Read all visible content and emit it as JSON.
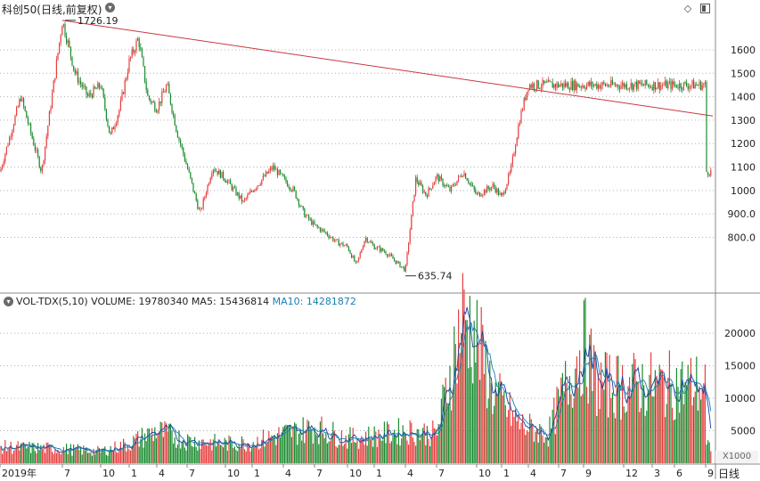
{
  "window": {
    "title": "科创50(日线,前复权)",
    "title_button_icon": "chevron-down-icon",
    "toolbar_icons": [
      "diamond-icon",
      "maximize-icon"
    ]
  },
  "colors": {
    "up": "#e64040",
    "down": "#1c8c30",
    "trendline": "#c8383f",
    "ma5": "#1a3f9e",
    "ma10": "#1a7fb0",
    "grid": "#b0b0b0"
  },
  "volume_header": {
    "button_icon": "chevron-down-icon",
    "text": "VOL-TDX(5,10) VOLUME: 19780340 MA5: 15436814",
    "ma10_text": "MA10: 14281872"
  },
  "volume_unit": "X1000",
  "period": "日线",
  "chart_data": [
    {
      "type": "candlestick",
      "title": "科创50(日线,前复权)",
      "y_ticks": [
        "1600",
        "1500",
        "1400",
        "1300",
        "1200",
        "1100",
        "1000",
        "900.0",
        "800.0"
      ],
      "ylim": [
        560,
        1780
      ],
      "annotations": [
        {
          "text": "1726.19",
          "x": "2019-07",
          "value": 1726.19,
          "kind": "high"
        },
        {
          "text": "635.74",
          "x": "2022-04",
          "value": 635.74,
          "kind": "low"
        }
      ],
      "trendline": [
        {
          "x": "2019-07",
          "value": 1726
        },
        {
          "x": "2024-10",
          "value": 1318
        }
      ],
      "x_labels": [
        "2019年",
        "7",
        "10",
        "1",
        "4",
        "7",
        "10",
        "1",
        "4",
        "7",
        "10",
        "1",
        "4",
        "7",
        "10",
        "1",
        "4",
        "7",
        "9",
        "12",
        "3",
        "6",
        "9"
      ],
      "close_series_approx": [
        [
          "2019-04",
          1080
        ],
        [
          "2019-05",
          1400
        ],
        [
          "2019-06",
          1080
        ],
        [
          "2019-07",
          1726
        ],
        [
          "2019-08",
          1500
        ],
        [
          "2019-09",
          1400
        ],
        [
          "2019-10",
          1450
        ],
        [
          "2019-11",
          1230
        ],
        [
          "2019-12",
          1350
        ],
        [
          "2020-01",
          1550
        ],
        [
          "2020-02",
          1650
        ],
        [
          "2020-03",
          1400
        ],
        [
          "2020-04",
          1350
        ],
        [
          "2020-05",
          1450
        ],
        [
          "2020-06",
          1250
        ],
        [
          "2020-07",
          1100
        ],
        [
          "2020-08",
          900
        ],
        [
          "2020-09",
          1100
        ],
        [
          "2020-10",
          1050
        ],
        [
          "2020-11",
          1000
        ],
        [
          "2020-12",
          950
        ],
        [
          "2021-01",
          1000
        ],
        [
          "2021-02",
          1050
        ],
        [
          "2021-03",
          1100
        ],
        [
          "2021-04",
          1050
        ],
        [
          "2021-05",
          1000
        ],
        [
          "2021-06",
          900
        ],
        [
          "2021-07",
          850
        ],
        [
          "2021-08",
          820
        ],
        [
          "2021-09",
          780
        ],
        [
          "2021-10",
          760
        ],
        [
          "2021-11",
          680
        ],
        [
          "2021-12",
          800
        ],
        [
          "2022-01",
          760
        ],
        [
          "2022-02",
          740
        ],
        [
          "2022-03",
          700
        ],
        [
          "2022-04",
          660
        ],
        [
          "2022-05",
          1050
        ],
        [
          "2022-06",
          980
        ],
        [
          "2022-07",
          1060
        ],
        [
          "2022-08",
          1000
        ],
        [
          "2022-09",
          1080
        ],
        [
          "2022-10",
          980
        ],
        [
          "2022-11",
          1000
        ],
        [
          "2022-12",
          1020
        ],
        [
          "2023-01",
          970
        ],
        [
          "2023-02",
          1080
        ],
        [
          "2023-03",
          1300
        ],
        [
          "2023-04",
          1450
        ]
      ]
    },
    {
      "type": "bar",
      "title": "VOL-TDX(5,10)",
      "y_ticks": [
        "20000",
        "15000",
        "10000",
        "5000"
      ],
      "ylim": [
        0,
        24000
      ],
      "unit": "X1000",
      "last_values": {
        "VOLUME": 19780340,
        "MA5": 15436814,
        "MA10": 14281872
      },
      "volume_series_approx": [
        [
          "2019-04",
          2500
        ],
        [
          "2019-07",
          2200
        ],
        [
          "2019-10",
          1800
        ],
        [
          "2020-01",
          3000
        ],
        [
          "2020-04",
          5000
        ],
        [
          "2020-07",
          3500
        ],
        [
          "2020-10",
          3000
        ],
        [
          "2021-01",
          3200
        ],
        [
          "2021-04",
          4500
        ],
        [
          "2021-07",
          5500
        ],
        [
          "2021-10",
          3800
        ],
        [
          "2022-01",
          4200
        ],
        [
          "2022-04",
          5000
        ],
        [
          "2022-07",
          4500
        ],
        [
          "2022-09",
          23000
        ],
        [
          "2022-12",
          11000
        ],
        [
          "2023-03",
          6000
        ],
        [
          "2023-06",
          4500
        ],
        [
          "2023-09",
          18500
        ],
        [
          "2023-10",
          12000
        ]
      ]
    }
  ]
}
